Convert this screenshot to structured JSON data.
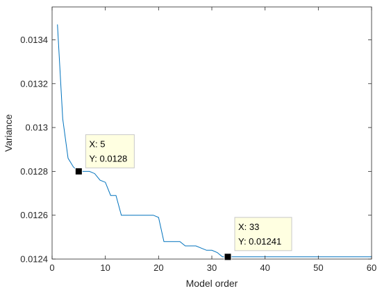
{
  "chart_data": {
    "type": "line",
    "title": "",
    "xlabel": "Model order",
    "ylabel": "Variance",
    "xlim": [
      0,
      60
    ],
    "ylim": [
      0.0124,
      0.01355
    ],
    "xticks": [
      0,
      10,
      20,
      30,
      40,
      50,
      60
    ],
    "yticks": [
      0.0124,
      0.0126,
      0.0128,
      0.013,
      0.0132,
      0.0134
    ],
    "ytick_labels": [
      "0.0124",
      "0.0126",
      "0.0128",
      "0.013",
      "0.0132",
      "0.0134"
    ],
    "grid": false,
    "line_color": "#0072bd",
    "series": [
      {
        "x": [
          1,
          2,
          3,
          4,
          5,
          6,
          7,
          8,
          9,
          10,
          11,
          12,
          13,
          14,
          15,
          16,
          17,
          18,
          19,
          20,
          21,
          22,
          23,
          24,
          25,
          26,
          27,
          28,
          29,
          30,
          31,
          32,
          33,
          34,
          35,
          36,
          37,
          38,
          39,
          40,
          41,
          42,
          43,
          44,
          45,
          46,
          47,
          48,
          49,
          50,
          51,
          52,
          53,
          54,
          55,
          56,
          57,
          58,
          59,
          60
        ],
        "values": [
          0.01347,
          0.01304,
          0.01286,
          0.01282,
          0.0128,
          0.0128,
          0.0128,
          0.01279,
          0.01276,
          0.01275,
          0.01269,
          0.01269,
          0.0126,
          0.0126,
          0.0126,
          0.0126,
          0.0126,
          0.0126,
          0.0126,
          0.01259,
          0.01248,
          0.01248,
          0.01248,
          0.01248,
          0.01246,
          0.01246,
          0.01246,
          0.01245,
          0.01244,
          0.01244,
          0.01243,
          0.01241,
          0.01241,
          0.01241,
          0.01241,
          0.01241,
          0.01241,
          0.01241,
          0.01241,
          0.01241,
          0.01241,
          0.01241,
          0.01241,
          0.01241,
          0.01241,
          0.01241,
          0.01241,
          0.01241,
          0.01241,
          0.01241,
          0.01241,
          0.01241,
          0.01241,
          0.01241,
          0.01241,
          0.01241,
          0.01241,
          0.01241,
          0.01241,
          0.01241
        ]
      }
    ],
    "datatips": [
      {
        "x": 5,
        "y": 0.0128,
        "x_text": "X: 5",
        "y_text": "Y: 0.0128"
      },
      {
        "x": 33,
        "y": 0.01241,
        "x_text": "X: 33",
        "y_text": "Y: 0.01241"
      }
    ]
  }
}
